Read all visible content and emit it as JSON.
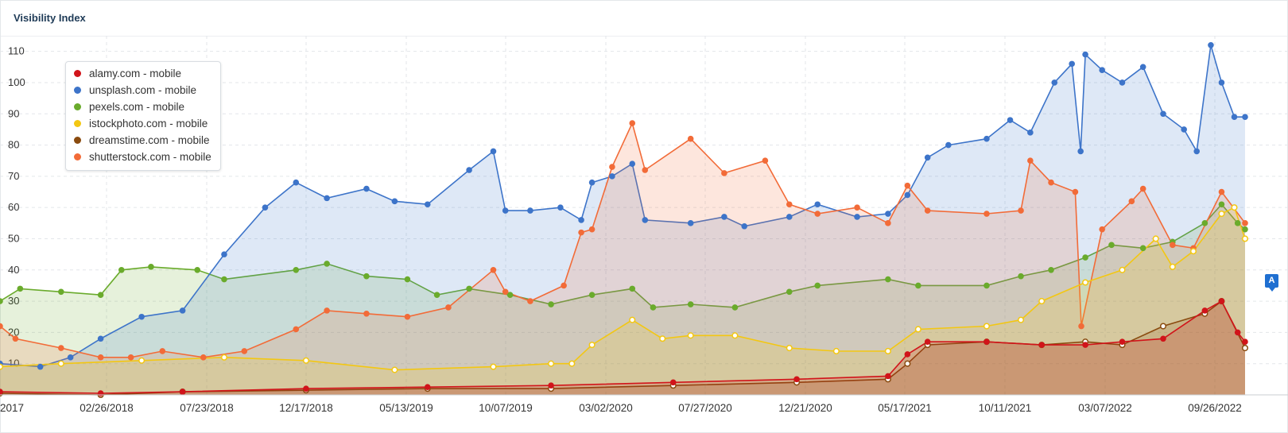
{
  "title": "Visibility Index",
  "annotation_label": "A",
  "chart_data": {
    "type": "area",
    "title": "Visibility Index",
    "xlabel": "",
    "ylabel": "",
    "ylim": [
      0,
      115
    ],
    "yticks": [
      10,
      20,
      30,
      40,
      50,
      60,
      70,
      80,
      90,
      100,
      110
    ],
    "xticks": [
      "2017",
      "02/26/2018",
      "07/23/2018",
      "12/17/2018",
      "05/13/2019",
      "10/07/2019",
      "03/02/2020",
      "07/27/2020",
      "12/21/2020",
      "05/17/2021",
      "10/11/2021",
      "03/07/2022",
      "09/26/2022"
    ],
    "x_start": "2017-10-02",
    "x_end": "2022-10-31",
    "grid": true,
    "legend_position": "top-left",
    "series": [
      {
        "name": "alamy.com - mobile",
        "color": "#d1141a",
        "points": [
          [
            "2017-10-02",
            1
          ],
          [
            "2018-03-01",
            0.5
          ],
          [
            "2018-07-01",
            1
          ],
          [
            "2019-01-01",
            2
          ],
          [
            "2019-07-01",
            2.5
          ],
          [
            "2020-01-01",
            3
          ],
          [
            "2020-07-01",
            4
          ],
          [
            "2021-01-01",
            5
          ],
          [
            "2021-05-17",
            6
          ],
          [
            "2021-06-15",
            13
          ],
          [
            "2021-07-15",
            17
          ],
          [
            "2021-10-11",
            17
          ],
          [
            "2022-01-01",
            16
          ],
          [
            "2022-03-07",
            16
          ],
          [
            "2022-05-01",
            17
          ],
          [
            "2022-07-01",
            18
          ],
          [
            "2022-09-01",
            27
          ],
          [
            "2022-09-26",
            30
          ],
          [
            "2022-10-20",
            20
          ],
          [
            "2022-10-31",
            17
          ]
        ]
      },
      {
        "name": "unsplash.com - mobile",
        "color": "#3d74c9",
        "points": [
          [
            "2017-10-02",
            10
          ],
          [
            "2017-12-01",
            9
          ],
          [
            "2018-01-15",
            12
          ],
          [
            "2018-03-01",
            18
          ],
          [
            "2018-05-01",
            25
          ],
          [
            "2018-07-01",
            27
          ],
          [
            "2018-09-01",
            45
          ],
          [
            "2018-11-01",
            60
          ],
          [
            "2018-12-17",
            68
          ],
          [
            "2019-02-01",
            63
          ],
          [
            "2019-04-01",
            66
          ],
          [
            "2019-05-13",
            62
          ],
          [
            "2019-07-01",
            61
          ],
          [
            "2019-09-01",
            72
          ],
          [
            "2019-10-07",
            78
          ],
          [
            "2019-10-25",
            59
          ],
          [
            "2019-12-01",
            59
          ],
          [
            "2020-01-15",
            60
          ],
          [
            "2020-02-15",
            56
          ],
          [
            "2020-03-02",
            68
          ],
          [
            "2020-04-01",
            70
          ],
          [
            "2020-05-01",
            74
          ],
          [
            "2020-05-20",
            56
          ],
          [
            "2020-07-27",
            55
          ],
          [
            "2020-09-15",
            57
          ],
          [
            "2020-10-15",
            54
          ],
          [
            "2020-12-21",
            57
          ],
          [
            "2021-02-01",
            61
          ],
          [
            "2021-04-01",
            57
          ],
          [
            "2021-05-17",
            58
          ],
          [
            "2021-06-15",
            64
          ],
          [
            "2021-07-15",
            76
          ],
          [
            "2021-08-15",
            80
          ],
          [
            "2021-10-11",
            82
          ],
          [
            "2021-11-15",
            88
          ],
          [
            "2021-12-15",
            84
          ],
          [
            "2022-01-20",
            100
          ],
          [
            "2022-02-15",
            106
          ],
          [
            "2022-02-28",
            78
          ],
          [
            "2022-03-07",
            109
          ],
          [
            "2022-04-01",
            104
          ],
          [
            "2022-05-01",
            100
          ],
          [
            "2022-06-01",
            105
          ],
          [
            "2022-07-01",
            90
          ],
          [
            "2022-08-01",
            85
          ],
          [
            "2022-08-20",
            78
          ],
          [
            "2022-09-10",
            112
          ],
          [
            "2022-09-26",
            100
          ],
          [
            "2022-10-15",
            89
          ],
          [
            "2022-10-31",
            89
          ]
        ]
      },
      {
        "name": "pexels.com - mobile",
        "color": "#6aab2c",
        "points": [
          [
            "2017-10-02",
            30
          ],
          [
            "2017-11-01",
            34
          ],
          [
            "2018-01-01",
            33
          ],
          [
            "2018-03-01",
            32
          ],
          [
            "2018-04-01",
            40
          ],
          [
            "2018-05-15",
            41
          ],
          [
            "2018-07-23",
            40
          ],
          [
            "2018-09-01",
            37
          ],
          [
            "2018-12-17",
            40
          ],
          [
            "2019-02-01",
            42
          ],
          [
            "2019-04-01",
            38
          ],
          [
            "2019-06-01",
            37
          ],
          [
            "2019-07-15",
            32
          ],
          [
            "2019-09-01",
            34
          ],
          [
            "2019-11-01",
            32
          ],
          [
            "2020-01-01",
            29
          ],
          [
            "2020-03-02",
            32
          ],
          [
            "2020-05-01",
            34
          ],
          [
            "2020-06-01",
            28
          ],
          [
            "2020-07-27",
            29
          ],
          [
            "2020-10-01",
            28
          ],
          [
            "2020-12-21",
            33
          ],
          [
            "2021-02-01",
            35
          ],
          [
            "2021-05-17",
            37
          ],
          [
            "2021-07-01",
            35
          ],
          [
            "2021-10-11",
            35
          ],
          [
            "2021-12-01",
            38
          ],
          [
            "2022-01-15",
            40
          ],
          [
            "2022-03-07",
            44
          ],
          [
            "2022-04-15",
            48
          ],
          [
            "2022-06-01",
            47
          ],
          [
            "2022-07-15",
            49
          ],
          [
            "2022-09-01",
            55
          ],
          [
            "2022-09-26",
            61
          ],
          [
            "2022-10-20",
            55
          ],
          [
            "2022-10-31",
            53
          ]
        ]
      },
      {
        "name": "istockphoto.com - mobile",
        "color": "#f3c712",
        "points": [
          [
            "2017-10-02",
            9
          ],
          [
            "2018-01-01",
            10
          ],
          [
            "2018-05-01",
            11
          ],
          [
            "2018-09-01",
            12
          ],
          [
            "2019-01-01",
            11
          ],
          [
            "2019-05-13",
            8
          ],
          [
            "2019-10-07",
            9
          ],
          [
            "2020-01-01",
            10
          ],
          [
            "2020-02-01",
            10
          ],
          [
            "2020-03-02",
            16
          ],
          [
            "2020-05-01",
            24
          ],
          [
            "2020-06-15",
            18
          ],
          [
            "2020-07-27",
            19
          ],
          [
            "2020-10-01",
            19
          ],
          [
            "2020-12-21",
            15
          ],
          [
            "2021-03-01",
            14
          ],
          [
            "2021-05-17",
            14
          ],
          [
            "2021-07-01",
            21
          ],
          [
            "2021-10-11",
            22
          ],
          [
            "2021-12-01",
            24
          ],
          [
            "2022-01-01",
            30
          ],
          [
            "2022-03-07",
            36
          ],
          [
            "2022-05-01",
            40
          ],
          [
            "2022-06-20",
            50
          ],
          [
            "2022-07-15",
            41
          ],
          [
            "2022-08-15",
            46
          ],
          [
            "2022-09-26",
            58
          ],
          [
            "2022-10-15",
            60
          ],
          [
            "2022-10-31",
            50
          ]
        ]
      },
      {
        "name": "dreamstime.com - mobile",
        "color": "#8a4b0f",
        "points": [
          [
            "2017-10-02",
            0.5
          ],
          [
            "2018-03-01",
            0
          ],
          [
            "2018-07-01",
            1
          ],
          [
            "2019-01-01",
            1.5
          ],
          [
            "2019-07-01",
            2
          ],
          [
            "2020-01-01",
            2
          ],
          [
            "2020-07-01",
            3
          ],
          [
            "2021-01-01",
            4
          ],
          [
            "2021-05-17",
            5
          ],
          [
            "2021-06-15",
            10
          ],
          [
            "2021-07-15",
            16
          ],
          [
            "2021-10-11",
            17
          ],
          [
            "2022-01-01",
            16
          ],
          [
            "2022-03-07",
            17
          ],
          [
            "2022-05-01",
            16
          ],
          [
            "2022-07-01",
            22
          ],
          [
            "2022-09-01",
            26
          ],
          [
            "2022-09-26",
            30
          ],
          [
            "2022-10-31",
            15
          ]
        ]
      },
      {
        "name": "shutterstock.com - mobile",
        "color": "#f26b38",
        "points": [
          [
            "2017-10-02",
            22
          ],
          [
            "2017-10-25",
            18
          ],
          [
            "2018-01-01",
            15
          ],
          [
            "2018-03-01",
            12
          ],
          [
            "2018-04-15",
            12
          ],
          [
            "2018-06-01",
            14
          ],
          [
            "2018-08-01",
            12
          ],
          [
            "2018-10-01",
            14
          ],
          [
            "2018-12-17",
            21
          ],
          [
            "2019-02-01",
            27
          ],
          [
            "2019-04-01",
            26
          ],
          [
            "2019-06-01",
            25
          ],
          [
            "2019-08-01",
            28
          ],
          [
            "2019-10-07",
            40
          ],
          [
            "2019-10-25",
            33
          ],
          [
            "2019-12-01",
            30
          ],
          [
            "2020-01-20",
            35
          ],
          [
            "2020-02-15",
            52
          ],
          [
            "2020-03-02",
            53
          ],
          [
            "2020-04-01",
            73
          ],
          [
            "2020-05-01",
            87
          ],
          [
            "2020-05-20",
            72
          ],
          [
            "2020-07-27",
            82
          ],
          [
            "2020-09-15",
            71
          ],
          [
            "2020-11-15",
            75
          ],
          [
            "2020-12-21",
            61
          ],
          [
            "2021-02-01",
            58
          ],
          [
            "2021-04-01",
            60
          ],
          [
            "2021-05-17",
            55
          ],
          [
            "2021-06-15",
            67
          ],
          [
            "2021-07-15",
            59
          ],
          [
            "2021-10-11",
            58
          ],
          [
            "2021-12-01",
            59
          ],
          [
            "2021-12-15",
            75
          ],
          [
            "2022-01-15",
            68
          ],
          [
            "2022-02-20",
            65
          ],
          [
            "2022-03-01",
            22
          ],
          [
            "2022-04-01",
            53
          ],
          [
            "2022-05-15",
            62
          ],
          [
            "2022-06-01",
            66
          ],
          [
            "2022-07-15",
            48
          ],
          [
            "2022-08-15",
            47
          ],
          [
            "2022-09-26",
            65
          ],
          [
            "2022-10-31",
            55
          ]
        ]
      }
    ]
  }
}
